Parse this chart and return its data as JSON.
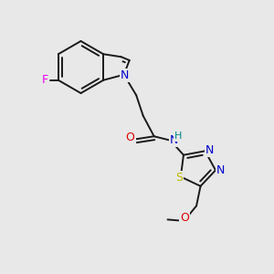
{
  "background_color": "#e8e8e8",
  "bond_color": "#1a1a1a",
  "atom_colors": {
    "N": "#0000cc",
    "O": "#dd0000",
    "F": "#ee00ee",
    "S": "#bbbb00",
    "H": "#008888",
    "C": "#1a1a1a"
  },
  "figsize": [
    3.0,
    3.0
  ],
  "dpi": 100
}
